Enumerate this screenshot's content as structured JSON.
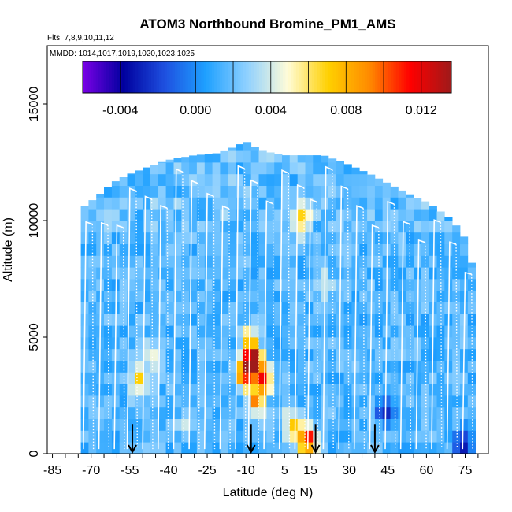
{
  "chart_data": {
    "type": "heatmap",
    "title": "ATOM3 Northbound Bromine_PM1_AMS",
    "flights_label": "Flts: 7,8,9,10,11,12",
    "dates_label": "MMDD: 1014,1017,1019,1020,1023,1025",
    "xlabel": "Latitude (deg N)",
    "ylabel": "Altitude (m)",
    "xlim": [
      -87,
      84
    ],
    "ylim": [
      0,
      17500
    ],
    "x_ticks": [
      "-85",
      "-70",
      "-55",
      "-40",
      "-25",
      "-10",
      "5",
      "15",
      "30",
      "45",
      "60",
      "75"
    ],
    "x_tick_values": [
      -85,
      -70,
      -55,
      -40,
      -25,
      -10,
      5,
      15,
      30,
      45,
      60,
      75
    ],
    "y_ticks": [
      "0",
      "5000",
      "10000",
      "15000"
    ],
    "y_tick_values": [
      0,
      5000,
      10000,
      15000
    ],
    "colorbar": {
      "min": -0.006,
      "max": 0.0136,
      "ticks": [
        "-0.004",
        "0.000",
        "0.004",
        "0.008",
        "0.012"
      ],
      "tick_values": [
        -0.004,
        0.0,
        0.004,
        0.008,
        0.012
      ],
      "colors": [
        "#7a00e6",
        "#00009e",
        "#1e50e0",
        "#1ea0ff",
        "#8ed0ff",
        "#fffcd8",
        "#ffd000",
        "#ff8a00",
        "#ff0000",
        "#9e1a1a"
      ]
    },
    "background_value": 0.0015,
    "envelope_top_altitude": [
      [
        -74,
        10500
      ],
      [
        -68,
        11000
      ],
      [
        -62,
        11600
      ],
      [
        -55,
        12000
      ],
      [
        -48,
        12300
      ],
      [
        -40,
        12600
      ],
      [
        -30,
        12800
      ],
      [
        -20,
        12900
      ],
      [
        -14,
        13200
      ],
      [
        -10,
        13400
      ],
      [
        -4,
        13000
      ],
      [
        5,
        12800
      ],
      [
        20,
        12800
      ],
      [
        30,
        12400
      ],
      [
        38,
        12000
      ],
      [
        45,
        11600
      ],
      [
        52,
        11200
      ],
      [
        60,
        10800
      ],
      [
        68,
        10200
      ],
      [
        74,
        9500
      ],
      [
        78,
        8000
      ]
    ],
    "enhancements": [
      {
        "lat": -7,
        "alt": 4000,
        "value": 0.0125
      },
      {
        "lat": -11,
        "alt": 3500,
        "value": 0.0105
      },
      {
        "lat": -3,
        "alt": 3200,
        "value": 0.0095
      },
      {
        "lat": -6,
        "alt": 2300,
        "value": 0.0085
      },
      {
        "lat": -9,
        "alt": 4800,
        "value": 0.0065
      },
      {
        "lat": 14,
        "alt": 600,
        "value": 0.0115
      },
      {
        "lat": 8,
        "alt": 1200,
        "value": 0.0075
      },
      {
        "lat": -51,
        "alt": 3100,
        "value": 0.0068
      },
      {
        "lat": -46,
        "alt": 4200,
        "value": 0.0045
      },
      {
        "lat": 11,
        "alt": 10100,
        "value": 0.008
      },
      {
        "lat": 20,
        "alt": 7200,
        "value": 0.0045
      },
      {
        "lat": -33,
        "alt": 1400,
        "value": 0.004
      },
      {
        "lat": 44,
        "alt": 1900,
        "value": -0.003
      },
      {
        "lat": 74,
        "alt": 400,
        "value": -0.0025
      }
    ],
    "flight_track_latitudes": [
      -77,
      -72,
      -66,
      -60,
      -55,
      -49,
      -43,
      -37,
      -31,
      -25,
      -19,
      -13,
      -8,
      -2,
      4,
      10,
      15,
      21,
      27,
      33,
      39,
      45,
      51,
      57,
      63,
      69,
      75
    ],
    "arrow_latitudes": [
      -54,
      -8,
      17,
      40
    ]
  }
}
